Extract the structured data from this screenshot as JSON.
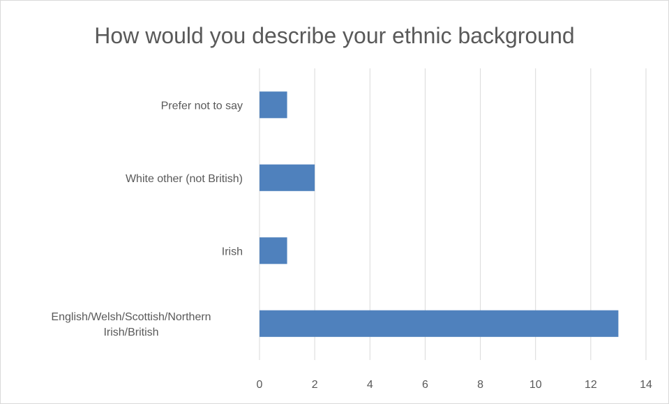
{
  "chart_data": {
    "type": "bar",
    "orientation": "horizontal",
    "title": "How would you describe your ethnic background",
    "categories": [
      "English/Welsh/Scottish/Northern Irish/British",
      "Irish",
      "White other (not British)",
      "Prefer not to say"
    ],
    "category_label_lines": [
      [
        "English/Welsh/Scottish/Northern",
        "Irish/British"
      ],
      [
        "Irish"
      ],
      [
        "White other (not British)"
      ],
      [
        "Prefer not to say"
      ]
    ],
    "values": [
      13,
      1,
      2,
      1
    ],
    "xlim": [
      0,
      14
    ],
    "x_ticks": [
      "0",
      "2",
      "4",
      "6",
      "8",
      "10",
      "12",
      "14"
    ],
    "grid": true,
    "legend": "none",
    "bar_color": "#4f81bd",
    "grid_color": "#d9d9d9",
    "text_color": "#595959"
  }
}
